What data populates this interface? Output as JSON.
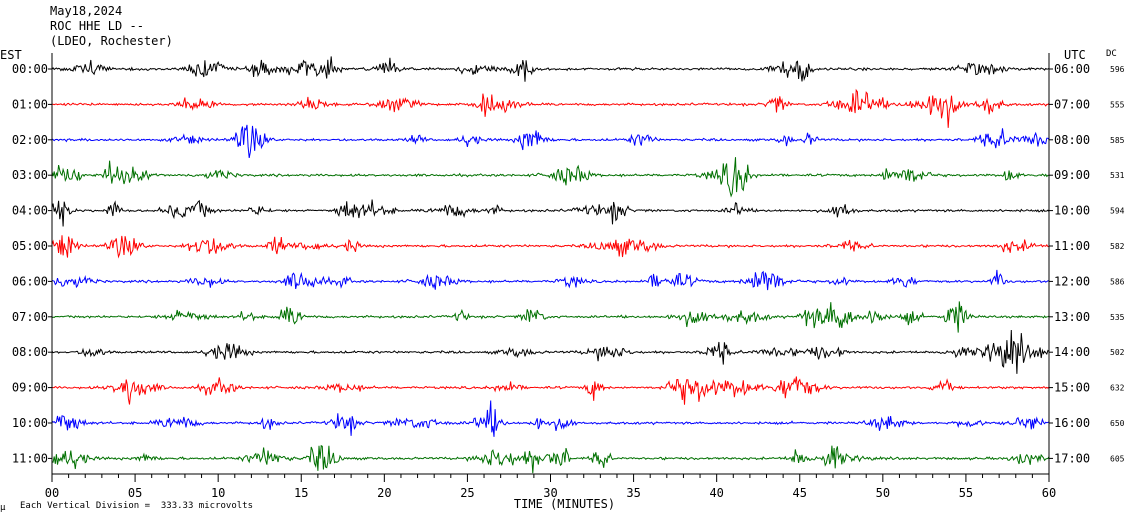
{
  "header": {
    "date": "May18,2024",
    "station": "ROC HHE LD --",
    "network": "(LDEO, Rochester)"
  },
  "left_tz": "EST",
  "right_tz": "UTC",
  "dc_header": "DC",
  "footer_note": "Each Vertical Division =  333.33 microvolts",
  "footer_mark": "μ",
  "chart_data": {
    "type": "line",
    "title": "",
    "xlabel": "TIME (MINUTES)",
    "ylabel": "",
    "xlim": [
      0,
      60
    ],
    "x_ticks": [
      "00",
      "05",
      "10",
      "15",
      "20",
      "25",
      "30",
      "35",
      "40",
      "45",
      "50",
      "55",
      "60"
    ],
    "line_colors": [
      "#000000",
      "#ff0000",
      "#0000ff",
      "#007000"
    ],
    "rows": [
      {
        "est": "00:00",
        "utc": "06:00",
        "dc": "596"
      },
      {
        "est": "01:00",
        "utc": "07:00",
        "dc": "555"
      },
      {
        "est": "02:00",
        "utc": "08:00",
        "dc": "585"
      },
      {
        "est": "03:00",
        "utc": "09:00",
        "dc": "531"
      },
      {
        "est": "04:00",
        "utc": "10:00",
        "dc": "594"
      },
      {
        "est": "05:00",
        "utc": "11:00",
        "dc": "582"
      },
      {
        "est": "06:00",
        "utc": "12:00",
        "dc": "586"
      },
      {
        "est": "07:00",
        "utc": "13:00",
        "dc": "535"
      },
      {
        "est": "08:00",
        "utc": "14:00",
        "dc": "502"
      },
      {
        "est": "09:00",
        "utc": "15:00",
        "dc": "632"
      },
      {
        "est": "10:00",
        "utc": "16:00",
        "dc": "650"
      },
      {
        "est": "11:00",
        "utc": "17:00",
        "dc": "605"
      }
    ]
  }
}
